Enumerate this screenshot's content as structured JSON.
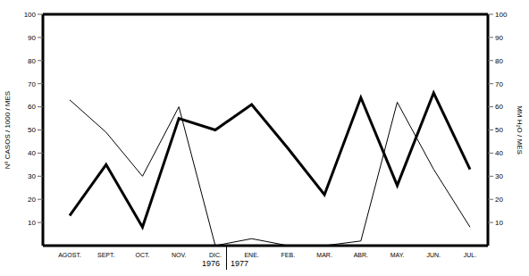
{
  "chart_data": {
    "type": "line",
    "categories": [
      "AGOST.",
      "SEPT.",
      "OCT.",
      "NOV.",
      "DIC.",
      "ENE.",
      "FEB.",
      "MAR.",
      "ABR.",
      "MAY.",
      "JUN.",
      "JUL."
    ],
    "series": [
      {
        "color": "#000000",
        "line_style": "thick",
        "values": [
          13,
          35,
          8,
          55,
          50,
          61,
          42,
          22,
          64,
          26,
          66,
          33
        ]
      },
      {
        "color": "#000000",
        "line_style": "thin",
        "axis": "y2",
        "values": [
          63,
          49,
          30,
          60,
          0,
          3,
          0,
          0,
          2,
          62,
          33,
          8
        ]
      }
    ],
    "y_label": "Nº CASOS / 1000 / MES",
    "y2_label": "MM H₂O / MES",
    "ylim": [
      0,
      100
    ],
    "yticks": [
      10,
      20,
      30,
      40,
      50,
      60,
      70,
      80,
      90,
      100
    ],
    "y2lim": [
      0,
      100
    ],
    "y2ticks": [
      10,
      20,
      30,
      40,
      50,
      60,
      70,
      80,
      90,
      100
    ],
    "annotations": [
      "1976",
      "1977"
    ],
    "grid": false
  }
}
